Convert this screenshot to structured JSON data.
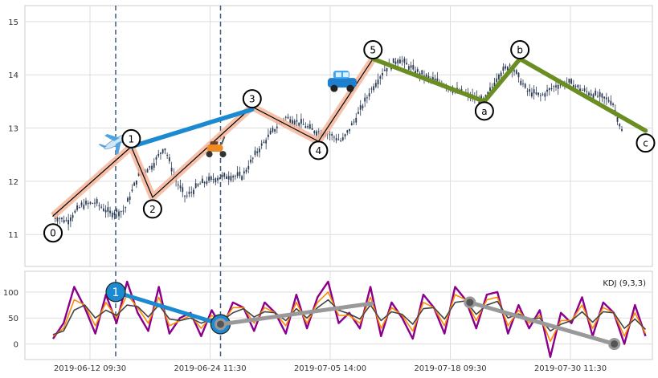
{
  "chart_data": [
    {
      "type": "candlestick",
      "title": "",
      "xlabel": "",
      "ylabel": "",
      "ylim": [
        10.4,
        15.3
      ],
      "yticks": [
        11,
        12,
        13,
        14,
        15
      ],
      "grid": true,
      "price_path": [
        {
          "t": 0.0,
          "v": 11.35
        },
        {
          "t": 0.03,
          "v": 11.25
        },
        {
          "t": 0.06,
          "v": 11.55
        },
        {
          "t": 0.09,
          "v": 11.6
        },
        {
          "t": 0.12,
          "v": 11.4
        },
        {
          "t": 0.15,
          "v": 11.45
        },
        {
          "t": 0.18,
          "v": 12.1
        },
        {
          "t": 0.21,
          "v": 12.3
        },
        {
          "t": 0.235,
          "v": 12.65
        },
        {
          "t": 0.26,
          "v": 12.0
        },
        {
          "t": 0.28,
          "v": 11.7
        },
        {
          "t": 0.31,
          "v": 11.95
        },
        {
          "t": 0.34,
          "v": 12.05
        },
        {
          "t": 0.37,
          "v": 12.1
        },
        {
          "t": 0.4,
          "v": 12.1
        },
        {
          "t": 0.43,
          "v": 12.55
        },
        {
          "t": 0.46,
          "v": 12.9
        },
        {
          "t": 0.49,
          "v": 13.2
        },
        {
          "t": 0.52,
          "v": 13.1
        },
        {
          "t": 0.55,
          "v": 12.95
        },
        {
          "t": 0.58,
          "v": 12.9
        },
        {
          "t": 0.61,
          "v": 12.75
        },
        {
          "t": 0.64,
          "v": 13.2
        },
        {
          "t": 0.67,
          "v": 13.7
        },
        {
          "t": 0.7,
          "v": 14.1
        },
        {
          "t": 0.73,
          "v": 14.3
        },
        {
          "t": 0.76,
          "v": 14.1
        },
        {
          "t": 0.79,
          "v": 13.95
        },
        {
          "t": 0.82,
          "v": 13.85
        },
        {
          "t": 0.85,
          "v": 13.7
        },
        {
          "t": 0.88,
          "v": 13.6
        },
        {
          "t": 0.91,
          "v": 13.5
        },
        {
          "t": 0.94,
          "v": 14.0
        },
        {
          "t": 0.965,
          "v": 14.2
        },
        {
          "t": 1.0,
          "v": 13.7
        },
        {
          "t": 1.03,
          "v": 13.6
        },
        {
          "t": 1.06,
          "v": 13.8
        },
        {
          "t": 1.09,
          "v": 13.85
        },
        {
          "t": 1.12,
          "v": 13.7
        },
        {
          "t": 1.15,
          "v": 13.6
        },
        {
          "t": 1.18,
          "v": 13.5
        },
        {
          "t": 1.2,
          "v": 12.95
        }
      ],
      "wave_points": [
        {
          "label": "0",
          "t": 0.0,
          "v": 11.35
        },
        {
          "label": "1",
          "t": 0.165,
          "v": 12.65
        },
        {
          "label": "2",
          "t": 0.21,
          "v": 11.7
        },
        {
          "label": "3",
          "t": 0.42,
          "v": 13.4
        },
        {
          "label": "4",
          "t": 0.56,
          "v": 12.75
        },
        {
          "label": "5",
          "t": 0.675,
          "v": 14.3
        },
        {
          "label": "a",
          "t": 0.91,
          "v": 13.5
        },
        {
          "label": "b",
          "t": 0.985,
          "v": 14.3
        },
        {
          "label": "c",
          "t": 1.25,
          "v": 12.95
        }
      ],
      "label_marks": [
        {
          "label": "0",
          "t": 0.0,
          "v": 11.03
        },
        {
          "label": "1",
          "t": 0.165,
          "v": 12.8
        },
        {
          "label": "2",
          "t": 0.21,
          "v": 11.48
        },
        {
          "label": "3",
          "t": 0.42,
          "v": 13.55
        },
        {
          "label": "4",
          "t": 0.56,
          "v": 12.58
        },
        {
          "label": "5",
          "t": 0.675,
          "v": 14.47
        },
        {
          "label": "a",
          "t": 0.91,
          "v": 13.32
        },
        {
          "label": "b",
          "t": 0.985,
          "v": 14.47
        },
        {
          "label": "c",
          "t": 1.25,
          "v": 12.72
        }
      ],
      "trend_lines": [
        {
          "name": "",
          "color": "#1c8ad0",
          "from": {
            "t": 0.165,
            "v": 12.65
          },
          "to": {
            "t": 0.42,
            "v": 13.35
          }
        },
        {
          "name": "",
          "color": "#6b8e23",
          "from": {
            "t": 0.675,
            "v": 14.3
          },
          "to": {
            "t": 0.91,
            "v": 13.5
          }
        },
        {
          "name": "",
          "color": "#6b8e23",
          "from": {
            "t": 0.91,
            "v": 13.5
          },
          "to": {
            "t": 0.985,
            "v": 14.3
          }
        },
        {
          "name": "",
          "color": "#6b8e23",
          "from": {
            "t": 0.985,
            "v": 14.3
          },
          "to": {
            "t": 1.25,
            "v": 12.95
          }
        }
      ],
      "icons": [
        "airplane-icon",
        "scooter-icon",
        "car-icon"
      ],
      "vlines_t": [
        0.18,
        0.405
      ],
      "colors": {
        "candle": "#2b3a55",
        "wave_band": "#f4b59a",
        "wave_line": "#000000",
        "vline": "#3a5a80"
      }
    },
    {
      "type": "line",
      "title": "",
      "xlabel": "",
      "ylabel": "",
      "legend_text": "KDJ (9,3,3)",
      "legend_position": "top-right",
      "ylim": [
        -30,
        140
      ],
      "yticks": [
        0,
        50,
        100
      ],
      "xtick_labels": [
        "2019-06-12 09:30",
        "2019-06-24 11:30",
        "2019-07-05 14:00",
        "2019-07-18 09:30",
        "2019-07-30 11:30"
      ],
      "series": [
        {
          "color": "#8b008b",
          "values": [
            10,
            40,
            110,
            70,
            20,
            95,
            40,
            120,
            60,
            25,
            110,
            20,
            50,
            60,
            15,
            65,
            30,
            80,
            70,
            25,
            80,
            60,
            20,
            95,
            30,
            90,
            120,
            40,
            60,
            30,
            110,
            15,
            80,
            50,
            10,
            95,
            70,
            20,
            110,
            85,
            30,
            95,
            100,
            20,
            75,
            30,
            65,
            -25,
            60,
            40,
            90,
            15,
            80,
            60,
            0,
            75,
            15
          ]
        },
        {
          "color": "#ff8c00",
          "values": [
            15,
            30,
            85,
            75,
            35,
            80,
            50,
            95,
            70,
            40,
            90,
            35,
            45,
            55,
            30,
            55,
            40,
            70,
            70,
            40,
            70,
            60,
            35,
            80,
            40,
            80,
            100,
            55,
            55,
            40,
            90,
            30,
            70,
            55,
            25,
            80,
            70,
            35,
            95,
            85,
            45,
            85,
            90,
            35,
            65,
            40,
            55,
            5,
            45,
            45,
            75,
            30,
            70,
            60,
            15,
            60,
            20
          ]
        },
        {
          "color": "#444444",
          "values": [
            18,
            25,
            65,
            75,
            50,
            65,
            55,
            75,
            72,
            52,
            75,
            48,
            45,
            50,
            40,
            48,
            45,
            60,
            68,
            52,
            62,
            60,
            45,
            68,
            50,
            70,
            85,
            65,
            58,
            48,
            75,
            45,
            62,
            57,
            38,
            68,
            70,
            48,
            80,
            83,
            57,
            75,
            82,
            50,
            58,
            48,
            50,
            25,
            38,
            45,
            62,
            42,
            62,
            60,
            30,
            48,
            28
          ]
        }
      ],
      "pivot_lines": [
        {
          "color": "#1c8ad0",
          "points": [
            {
              "t": 0.18,
              "v": 100
            },
            {
              "t": 0.405,
              "v": 38
            }
          ],
          "labels": [
            "1",
            "3"
          ]
        },
        {
          "color": "#999999",
          "points": [
            {
              "t": 0.405,
              "v": 38
            },
            {
              "t": 0.73,
              "v": 78
            }
          ],
          "labels": []
        },
        {
          "color": "#999999",
          "points": [
            {
              "t": 0.94,
              "v": 80
            },
            {
              "t": 1.25,
              "v": 0
            }
          ],
          "labels": []
        }
      ]
    }
  ]
}
